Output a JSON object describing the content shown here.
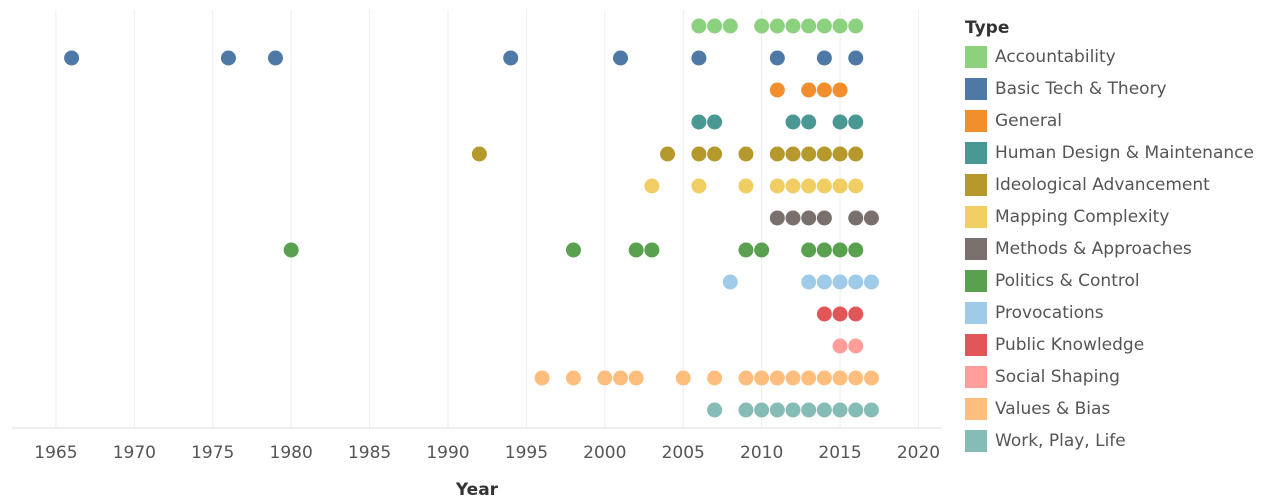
{
  "chart_data": {
    "type": "scatter",
    "x_label": "Year",
    "legend_title": "Type",
    "xlim": [
      1962.2,
      2021.5
    ],
    "xticks": [
      1965,
      1970,
      1975,
      1980,
      1985,
      1990,
      1995,
      2000,
      2005,
      2010,
      2015,
      2020
    ],
    "grid": true,
    "series": [
      {
        "name": "Accountability",
        "color": "#8cd17d",
        "values": [
          2006,
          2007,
          2008,
          2010,
          2011,
          2012,
          2013,
          2014,
          2015,
          2016
        ]
      },
      {
        "name": "Basic Tech & Theory",
        "color": "#4e79a7",
        "values": [
          1966,
          1976,
          1979,
          1994,
          2001,
          2006,
          2011,
          2014,
          2016
        ]
      },
      {
        "name": "General",
        "color": "#f28e2b",
        "values": [
          2011,
          2013,
          2014,
          2015
        ]
      },
      {
        "name": "Human Design & Maintenance",
        "color": "#499894",
        "values": [
          2006,
          2007,
          2012,
          2013,
          2015,
          2016
        ]
      },
      {
        "name": "Ideological Advancement",
        "color": "#b6992d",
        "values": [
          1992,
          2004,
          2006,
          2007,
          2009,
          2011,
          2012,
          2013,
          2014,
          2015,
          2016
        ]
      },
      {
        "name": "Mapping Complexity",
        "color": "#f1ce63",
        "values": [
          2003,
          2006,
          2009,
          2011,
          2012,
          2013,
          2014,
          2015,
          2016
        ]
      },
      {
        "name": "Methods & Approaches",
        "color": "#79706e",
        "values": [
          2011,
          2012,
          2013,
          2014,
          2016,
          2017
        ]
      },
      {
        "name": "Politics & Control",
        "color": "#59a14f",
        "values": [
          1980,
          1998,
          2002,
          2003,
          2009,
          2010,
          2013,
          2014,
          2015,
          2016
        ]
      },
      {
        "name": "Provocations",
        "color": "#a0cbe8",
        "values": [
          2008,
          2013,
          2014,
          2015,
          2016,
          2017
        ]
      },
      {
        "name": "Public Knowledge",
        "color": "#e15759",
        "values": [
          2014,
          2015,
          2016
        ]
      },
      {
        "name": "Social Shaping",
        "color": "#ff9d9a",
        "values": [
          2015,
          2016
        ]
      },
      {
        "name": "Values & Bias",
        "color": "#ffbe7d",
        "values": [
          1996,
          1998,
          2000,
          2001,
          2002,
          2005,
          2007,
          2009,
          2010,
          2011,
          2012,
          2013,
          2014,
          2015,
          2016,
          2017
        ]
      },
      {
        "name": "Work, Play, Life",
        "color": "#86bcb6",
        "values": [
          2007,
          2009,
          2010,
          2011,
          2012,
          2013,
          2014,
          2015,
          2016,
          2017
        ]
      }
    ]
  }
}
